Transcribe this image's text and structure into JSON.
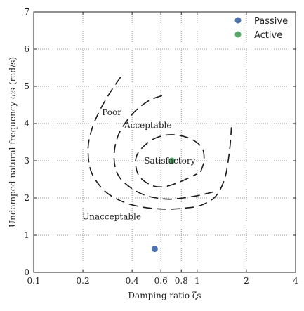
{
  "chart_data": {
    "type": "scatter",
    "xlabel": "Damping ratio ζs",
    "ylabel": "Undamped natural frequency ωs (rad/s)",
    "xscale": "log",
    "xlim": [
      0.1,
      4
    ],
    "ylim": [
      0,
      7
    ],
    "x_ticks": [
      0.1,
      0.2,
      0.4,
      0.6,
      0.8,
      1,
      2,
      4
    ],
    "x_tick_labels": [
      "0.1",
      "0.2",
      "0.4",
      "0.6",
      "0.8",
      "1",
      "2",
      "4"
    ],
    "y_ticks": [
      0,
      1,
      2,
      3,
      4,
      5,
      6,
      7
    ],
    "y_tick_labels": [
      "0",
      "1",
      "2",
      "3",
      "4",
      "5",
      "6",
      "7"
    ],
    "grid": true,
    "legend_position": "top-right",
    "series": [
      {
        "name": "Passive",
        "color": "#4c72b0",
        "points": [
          {
            "x": 0.55,
            "y": 0.63
          }
        ]
      },
      {
        "name": "Active",
        "color": "#55a868",
        "points": [
          {
            "x": 0.7,
            "y": 3.0
          }
        ]
      }
    ],
    "regions": [
      {
        "label": "Satisfactory",
        "label_at": {
          "x": 0.68,
          "y": 3.0
        },
        "curve": [
          {
            "x": 1.05,
            "y": 2.7
          },
          {
            "x": 1.1,
            "y": 3.0
          },
          {
            "x": 1.07,
            "y": 3.35
          },
          {
            "x": 0.9,
            "y": 3.6
          },
          {
            "x": 0.7,
            "y": 3.7
          },
          {
            "x": 0.55,
            "y": 3.6
          },
          {
            "x": 0.45,
            "y": 3.3
          },
          {
            "x": 0.42,
            "y": 3.0
          },
          {
            "x": 0.44,
            "y": 2.6
          },
          {
            "x": 0.52,
            "y": 2.35
          },
          {
            "x": 0.62,
            "y": 2.3
          },
          {
            "x": 0.75,
            "y": 2.4
          },
          {
            "x": 0.9,
            "y": 2.55
          },
          {
            "x": 1.0,
            "y": 2.65
          }
        ]
      },
      {
        "label": "Acceptable",
        "label_at": {
          "x": 0.5,
          "y": 3.95
        },
        "curve": [
          {
            "x": 0.61,
            "y": 4.75
          },
          {
            "x": 0.5,
            "y": 4.6
          },
          {
            "x": 0.4,
            "y": 4.25
          },
          {
            "x": 0.33,
            "y": 3.7
          },
          {
            "x": 0.31,
            "y": 3.1
          },
          {
            "x": 0.33,
            "y": 2.6
          },
          {
            "x": 0.4,
            "y": 2.25
          },
          {
            "x": 0.5,
            "y": 2.05
          },
          {
            "x": 0.65,
            "y": 1.97
          },
          {
            "x": 0.82,
            "y": 2.0
          },
          {
            "x": 1.05,
            "y": 2.08
          },
          {
            "x": 1.3,
            "y": 2.18
          }
        ]
      },
      {
        "label": "Poor",
        "label_at": {
          "x": 0.3,
          "y": 4.3
        },
        "curve": [
          {
            "x": 0.34,
            "y": 5.25
          },
          {
            "x": 0.29,
            "y": 4.8
          },
          {
            "x": 0.25,
            "y": 4.3
          },
          {
            "x": 0.225,
            "y": 3.8
          },
          {
            "x": 0.215,
            "y": 3.3
          },
          {
            "x": 0.225,
            "y": 2.7
          },
          {
            "x": 0.27,
            "y": 2.2
          },
          {
            "x": 0.35,
            "y": 1.9
          },
          {
            "x": 0.47,
            "y": 1.75
          },
          {
            "x": 0.65,
            "y": 1.7
          },
          {
            "x": 0.85,
            "y": 1.73
          },
          {
            "x": 1.05,
            "y": 1.8
          },
          {
            "x": 1.3,
            "y": 2.05
          },
          {
            "x": 1.48,
            "y": 2.55
          },
          {
            "x": 1.58,
            "y": 3.3
          },
          {
            "x": 1.62,
            "y": 3.9
          }
        ]
      },
      {
        "label": "Unacceptable",
        "label_at": {
          "x": 0.3,
          "y": 1.5
        },
        "curve": []
      }
    ]
  }
}
